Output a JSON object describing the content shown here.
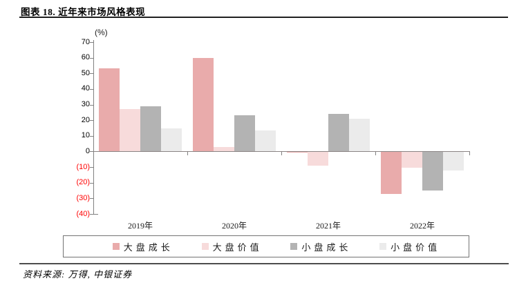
{
  "header": {
    "title": "图表 18. 近年来市场风格表现"
  },
  "chart_data": {
    "type": "bar",
    "title": "近年来市场风格表现",
    "unit_label": "(%)",
    "categories": [
      "2019年",
      "2020年",
      "2021年",
      "2022年"
    ],
    "series": [
      {
        "name": "大盘成长",
        "color": "#E9ABAB",
        "values": [
          53,
          60,
          -0.5,
          -27
        ]
      },
      {
        "name": "大盘价值",
        "color": "#F7DBDB",
        "values": [
          27,
          3,
          -9,
          -10.5
        ]
      },
      {
        "name": "小盘成长",
        "color": "#B3B3B3",
        "values": [
          29,
          23,
          24,
          -25
        ]
      },
      {
        "name": "小盘价值",
        "color": "#EBEBEB",
        "values": [
          15,
          13.5,
          21,
          -12
        ]
      }
    ],
    "ylim": [
      -40,
      70
    ],
    "ytick_step": 10,
    "ytick_labels": [
      "70",
      "60",
      "50",
      "40",
      "30",
      "20",
      "10",
      "0",
      "(10)",
      "(20)",
      "(30)",
      "(40)"
    ],
    "negative_tick_color": "#FF0000",
    "axis_color": "#808080",
    "grid": false,
    "legend_position": "bottom"
  },
  "footer": {
    "source": "资料来源: 万得, 中银证券"
  }
}
